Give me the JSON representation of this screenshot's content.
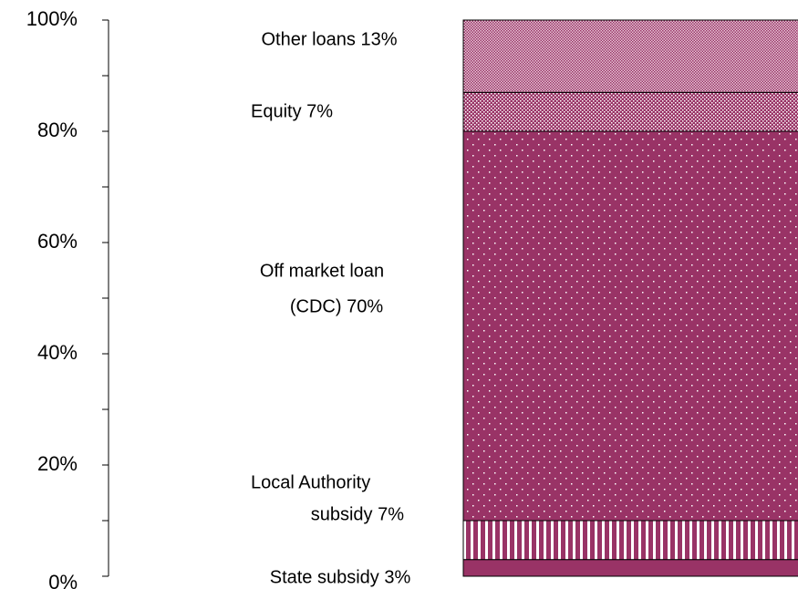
{
  "chart_data": {
    "type": "stacked_bar",
    "ylim": [
      0,
      100
    ],
    "yticks": [
      {
        "value": 0,
        "label": "0%"
      },
      {
        "value": 20,
        "label": "20%"
      },
      {
        "value": 40,
        "label": "40%"
      },
      {
        "value": 60,
        "label": "60%"
      },
      {
        "value": 80,
        "label": "80%"
      },
      {
        "value": 100,
        "label": "100%"
      }
    ],
    "minor_yticks": [
      10,
      30,
      50,
      70,
      90
    ],
    "series": [
      {
        "name": [
          "State subsidy 3%"
        ],
        "values": [
          3
        ],
        "color": "#993366",
        "pattern": "solid"
      },
      {
        "name": [
          "Local Authority",
          "subsidy 7%"
        ],
        "values": [
          7
        ],
        "color": "#993366",
        "pattern": "vstripes"
      },
      {
        "name": [
          "Off market loan",
          "(CDC) 70%"
        ],
        "values": [
          70
        ],
        "color": "#993366",
        "pattern": "dots"
      },
      {
        "name": [
          "Equity 7%"
        ],
        "values": [
          7
        ],
        "color": "#993366",
        "pattern": "finedots"
      },
      {
        "name": [
          "Other loans 13%"
        ],
        "values": [
          13
        ],
        "color": "#993366",
        "pattern": "checker"
      }
    ]
  }
}
